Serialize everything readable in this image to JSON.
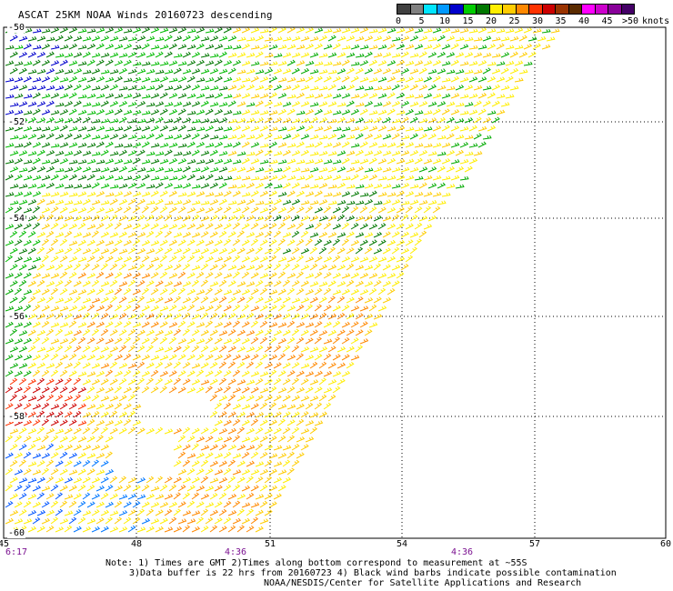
{
  "title": "ASCAT 25KM NOAA Winds 20160723 descending",
  "legend": {
    "units": "knots",
    "colors": [
      "#404040",
      "#808080",
      "#00e5ff",
      "#0099ff",
      "#0000cc",
      "#00cc00",
      "#007700",
      "#ffee00",
      "#ffcc00",
      "#ff8800",
      "#ff3300",
      "#cc0000",
      "#993300",
      "#5a2b00",
      "#ff00ff",
      "#cc00cc",
      "#880099",
      "#440066"
    ],
    "ticks": [
      "0",
      "5",
      "10",
      "15",
      "20",
      "25",
      "30",
      "35",
      "40",
      "45",
      ">50"
    ]
  },
  "latitudes": [
    "-50",
    "-52",
    "-54",
    "-56",
    "-58",
    "-60"
  ],
  "longitudes": [
    "45",
    "48",
    "51",
    "54",
    "57",
    "60"
  ],
  "times": [
    "6:17",
    "4:36",
    "4:36"
  ],
  "notes": {
    "line1": "Note: 1) Times are GMT 2)Times along bottom correspond to measurement at ~55S",
    "line2": "3)Data buffer is 22 hrs from 20160723 4) Black wind barbs indicate possible contamination",
    "line3": "NOAA/NESDIS/Center for Satellite Applications and Research"
  }
}
